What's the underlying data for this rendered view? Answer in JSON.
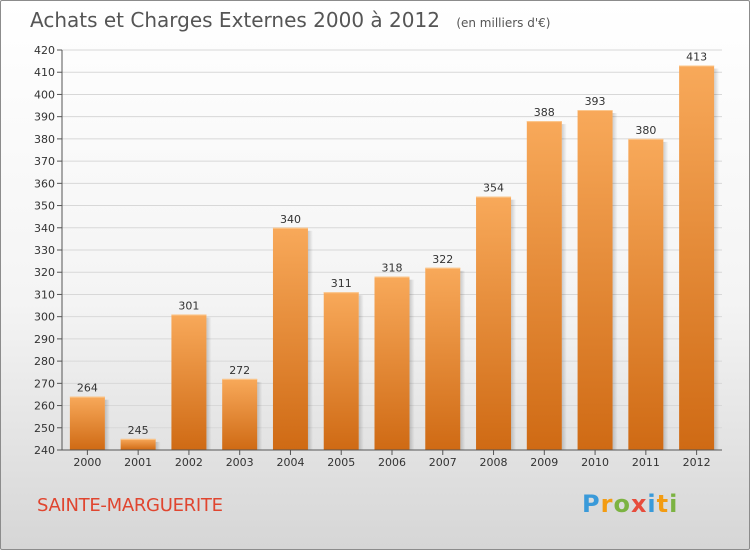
{
  "header": {
    "title": "Achats et Charges Externes 2000 à 2012",
    "subtitle": "(en milliers d'€)"
  },
  "footer": {
    "commune": "SAINTE-MARGUERITE",
    "logo": {
      "letters": [
        "P",
        "r",
        "o",
        "x",
        "i",
        "t",
        "i"
      ],
      "colors": [
        "#3a9ad9",
        "#f39c12",
        "#7cb342",
        "#e74c3c",
        "#3a9ad9",
        "#f39c12",
        "#7cb342"
      ]
    }
  },
  "chart_data": {
    "type": "bar",
    "title": "Achats et Charges Externes 2000 à 2012",
    "subtitle": "(en milliers d'€)",
    "categories": [
      "2000",
      "2001",
      "2002",
      "2003",
      "2004",
      "2005",
      "2006",
      "2007",
      "2008",
      "2009",
      "2010",
      "2011",
      "2012"
    ],
    "values": [
      264,
      245,
      301,
      272,
      340,
      311,
      318,
      322,
      354,
      388,
      393,
      380,
      413
    ],
    "ylim": [
      240,
      420
    ],
    "ytick_step": 10,
    "grid": true,
    "bar_colors": {
      "top": "#f8a95a",
      "bottom": "#cf6a14"
    },
    "xlabel": "",
    "ylabel": ""
  }
}
